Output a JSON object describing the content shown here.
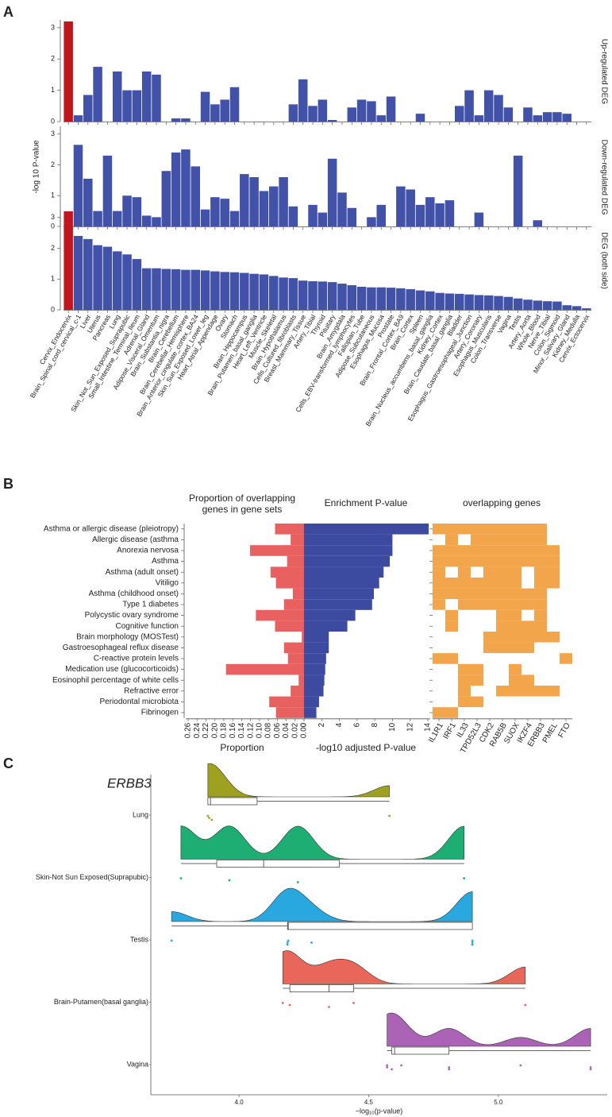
{
  "chart_data": [
    {
      "type": "bar-panels",
      "label": "A",
      "ylabel": "-log 10 P-value",
      "ylim": [
        0,
        3.2
      ],
      "yticks": [
        0,
        1,
        2,
        3
      ],
      "categories": [
        "Cervix_Endocervix",
        "Brain_Spinal_cord_cervical_c-1",
        "Liver",
        "Uterus",
        "Pancreas",
        "Lung",
        "Skin_Not_Sun_Exposed_Suprapubic",
        "Small_Intestine_Terminal_Ileum",
        "Adrenal_Gland",
        "Adipose_Visceral_Omentum",
        "Brain_Substantia_nigra",
        "Brain_Cerebellum",
        "Brain_Cerebellar_Hemisphere",
        "Brain_Anterior_cingulate_cortex_BA24",
        "Skin_Sun_Exposed_Lower_leg",
        "Heart_Atrial_Appendage",
        "Ovary",
        "Stomach",
        "Brain_Hippocampus",
        "Brain_Putamen_basal_ganglia",
        "Heart_Left_Ventricle",
        "Muscle_Skeletal",
        "Brain_Hypothalamus",
        "Cells_Cultured_fibroblasts",
        "Breast_Mammary_Tissue",
        "Artery_Tibial",
        "Thyroid",
        "Pituitary",
        "Brain_Amygdala",
        "Cells_EBV-transformed_lymphocytes",
        "Fallopian_Tube",
        "Adipose_Subcutaneous",
        "Esophagus_Mucosa",
        "Prostate",
        "Brain_Frontal_Cortex_BA9",
        "Brain_Cortex",
        "Spleen",
        "Brain_Nucleus_accumbens_basal_ganglia",
        "Kidney_Cortex",
        "Brain_Caudate_basal_ganglia",
        "Bladder",
        "Esophagus_Gastroesophageal_Junction",
        "Artery_Coronary",
        "Esophagus_Muscularis",
        "Colon_Transverse",
        "Vagina",
        "Testis",
        "Artery_Aorta",
        "Whole_Blood",
        "Nerve_Tibial",
        "Colon_Sigmoid",
        "Minor_Salivary_Gland",
        "Kidney_Medulla",
        "Cervix_Ectocervix"
      ],
      "series": [
        {
          "name": "Up-regulated DEG",
          "color": "#4152a8",
          "highlight_index": 0,
          "highlight_color": "#c0171e",
          "values": [
            3.2,
            0.2,
            0.85,
            1.75,
            0,
            1.6,
            1,
            1,
            1.6,
            1.5,
            0,
            0.1,
            0.1,
            0,
            0.95,
            0.55,
            0.7,
            1.1,
            0,
            0,
            0,
            0,
            0,
            0.55,
            1.35,
            0.5,
            0.7,
            0.05,
            0,
            0.45,
            0.7,
            0.65,
            0.2,
            0.8,
            0,
            0,
            0.25,
            0,
            0,
            0,
            0.5,
            1,
            0.2,
            1,
            0.85,
            0.45,
            0,
            0.45,
            0.2,
            0.3,
            0.3,
            0.25,
            0,
            0
          ]
        },
        {
          "name": "Down-regulated DEG",
          "color": "#4152a8",
          "values": [
            0,
            2.65,
            1.55,
            0.5,
            2.3,
            0.5,
            1,
            0.95,
            0.35,
            0.3,
            1.8,
            2.4,
            2.5,
            1.95,
            0.55,
            0.95,
            0.9,
            0.5,
            1.7,
            1.6,
            1.15,
            1.3,
            1.6,
            0.65,
            0,
            0.7,
            0.45,
            2.2,
            1.1,
            0.6,
            0,
            0.3,
            0.7,
            0,
            1.3,
            1.2,
            0.7,
            0.95,
            0.75,
            0.85,
            0,
            0,
            0.45,
            0,
            0,
            0,
            2.3,
            0,
            0.2,
            0,
            0,
            0,
            0,
            0
          ]
        },
        {
          "name": "DEG (both side)",
          "color": "#4152a8",
          "highlight_index": 0,
          "highlight_color": "#c0171e",
          "values": [
            3.2,
            2.4,
            2.3,
            2.1,
            2.05,
            1.9,
            1.8,
            1.65,
            1.35,
            1.35,
            1.33,
            1.32,
            1.3,
            1.3,
            1.28,
            1.25,
            1.23,
            1.22,
            1.2,
            1.17,
            1.15,
            1.1,
            1.05,
            1.03,
            0.95,
            0.93,
            0.92,
            0.9,
            0.85,
            0.8,
            0.75,
            0.73,
            0.73,
            0.72,
            0.7,
            0.67,
            0.63,
            0.6,
            0.55,
            0.53,
            0.52,
            0.5,
            0.48,
            0.47,
            0.45,
            0.42,
            0.37,
            0.33,
            0.3,
            0.28,
            0.27,
            0.15,
            0.12,
            0.05
          ]
        }
      ]
    },
    {
      "type": "enrichment",
      "label": "B",
      "terms": [
        "Asthma or allergic disease (pleiotropy)",
        "Allergic disease (asthma",
        "Anorexia nervosa",
        "Asthma",
        "Asthma (adult onset)",
        "Vitiligo",
        "Asthma (childhood onset)",
        "Type 1 diabetes",
        "Polycystic ovary syndrome",
        "Cognitive function",
        "Brain morphology (MOSTest)",
        "Gastroesophageal reflux disease",
        "C-reactive protein levels",
        "Medication use (glucocorticoids)",
        "Eosinophil percentage of white cells",
        "Refractive error",
        "Periodontal microbiota",
        "Fibrinogen"
      ],
      "proportion": {
        "title": [
          "Proportion of overlapping",
          "genes in gene sets"
        ],
        "xlabel": "Proportion",
        "color": "#e8605f",
        "xlim": [
          0,
          0.26
        ],
        "xticks": [
          {
            "value": 0,
            "label": "0.00"
          },
          0.02,
          0.04,
          0.06,
          0.08,
          {
            "value": 0.1,
            "label": "0.10"
          },
          0.12,
          0.14,
          0.16,
          0.18,
          {
            "value": 0.2,
            "label": "0.20"
          },
          0.22,
          0.24,
          0.26
        ],
        "values": [
          0.065,
          0.03,
          0.121,
          0.038,
          0.075,
          0.063,
          0.025,
          0.045,
          0.108,
          0.065,
          0.005,
          0.045,
          0.036,
          0.175,
          0.012,
          0.03,
          0.078,
          0.063
        ]
      },
      "enrichment": {
        "title": "Enrichment P-value",
        "xlabel": "-log10 adjusted P-value",
        "color": "#3c4aa0",
        "xlim": [
          0,
          14.3
        ],
        "xticks": [
          0,
          2,
          4,
          6,
          8,
          10,
          12,
          14
        ],
        "values": [
          14.1,
          10,
          10,
          9.7,
          9,
          8.5,
          7.9,
          7.7,
          5.8,
          4.9,
          2.8,
          2.8,
          2.5,
          2.4,
          2.3,
          2.2,
          1.7,
          1.4
        ]
      },
      "genes": {
        "title": "overlapping genes",
        "color": "#f2a54a",
        "names": [
          "IL1R1",
          "IRF1",
          "IL33",
          "TPD52L3",
          "CDK2",
          "RAB5B",
          "SUOX",
          "IKZF4",
          "ERBB3",
          "PMEL",
          "FTO"
        ],
        "matrix": [
          [
            1,
            1,
            1,
            1,
            1,
            1,
            1,
            1,
            1,
            0,
            0
          ],
          [
            0,
            1,
            0,
            1,
            1,
            1,
            1,
            1,
            1,
            0,
            0
          ],
          [
            1,
            1,
            1,
            1,
            1,
            1,
            1,
            1,
            1,
            1,
            0
          ],
          [
            1,
            1,
            1,
            1,
            1,
            1,
            1,
            1,
            1,
            1,
            0
          ],
          [
            1,
            0,
            1,
            0,
            1,
            1,
            1,
            0,
            1,
            1,
            0
          ],
          [
            1,
            1,
            1,
            1,
            1,
            1,
            1,
            0,
            1,
            1,
            0
          ],
          [
            1,
            1,
            1,
            1,
            1,
            1,
            1,
            1,
            1,
            0,
            0
          ],
          [
            1,
            0,
            1,
            1,
            1,
            1,
            1,
            1,
            1,
            0,
            0
          ],
          [
            0,
            1,
            0,
            0,
            0,
            1,
            1,
            0,
            1,
            0,
            0
          ],
          [
            0,
            1,
            0,
            0,
            0,
            1,
            1,
            1,
            1,
            0,
            0
          ],
          [
            0,
            0,
            0,
            0,
            1,
            1,
            1,
            1,
            1,
            1,
            0
          ],
          [
            0,
            0,
            0,
            0,
            1,
            1,
            1,
            1,
            0,
            0,
            0
          ],
          [
            1,
            1,
            0,
            0,
            0,
            0,
            0,
            0,
            0,
            0,
            1
          ],
          [
            0,
            0,
            1,
            1,
            0,
            0,
            1,
            0,
            0,
            0,
            0
          ],
          [
            0,
            0,
            1,
            1,
            0,
            0,
            1,
            1,
            0,
            0,
            0
          ],
          [
            0,
            0,
            1,
            0,
            0,
            1,
            1,
            1,
            1,
            1,
            0
          ],
          [
            0,
            0,
            1,
            1,
            0,
            0,
            0,
            0,
            0,
            0,
            0
          ],
          [
            1,
            1,
            0,
            0,
            0,
            0,
            0,
            0,
            0,
            0,
            0
          ]
        ]
      }
    },
    {
      "type": "raincloud",
      "label": "C",
      "title": "ERBB3",
      "xlabel": "−log₁₀(p-value)",
      "xlim": [
        3.66,
        5.42
      ],
      "xticks": [
        {
          "value": 4,
          "label": "4.0"
        },
        4.5,
        {
          "value": 5,
          "label": "5.0"
        }
      ],
      "groups": [
        {
          "name": "Lung",
          "color": "#9ea01f",
          "points": [
            3.88,
            3.885,
            3.895,
            4.58
          ],
          "box": [
            3.88,
            3.88,
            3.89,
            4.07,
            4.58
          ]
        },
        {
          "name": "Skin-Not Sun Exposed(Suprapubic)",
          "color": "#1eae73",
          "points": [
            3.776,
            3.963,
            4.227,
            4.868
          ],
          "box": [
            3.776,
            3.914,
            4.095,
            4.387,
            4.868
          ]
        },
        {
          "name": "Testis",
          "color": "#29a8df",
          "points": [
            3.74,
            4.187,
            4.187,
            4.19,
            4.28,
            4.9,
            4.9,
            4.9
          ],
          "box": [
            3.74,
            4.187,
            4.19,
            4.9,
            4.9
          ]
        },
        {
          "name": "Brain-Putamen(basal ganglia)",
          "color": "#e8665a",
          "points": [
            4.169,
            4.196,
            4.347,
            4.442,
            5.104
          ],
          "box": [
            4.169,
            4.196,
            4.347,
            4.442,
            5.104
          ]
        },
        {
          "name": "Vagina",
          "color": "#ab63b5",
          "points": [
            4.571,
            4.571,
            4.589,
            4.626,
            4.81,
            4.81,
            5.086,
            5.356,
            5.356
          ],
          "box": [
            4.571,
            4.589,
            4.6,
            4.81,
            5.356
          ]
        }
      ]
    }
  ]
}
